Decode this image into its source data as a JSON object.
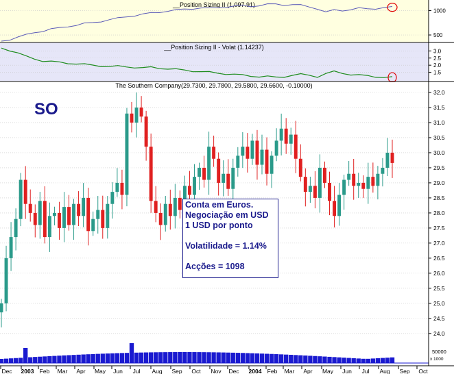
{
  "chart_data": [
    {
      "type": "line",
      "title": "__Position Sizing II (1,097.91)",
      "y_ticks": [
        500,
        1000
      ],
      "y_scale": "log",
      "ylim": [
        420,
        1250
      ],
      "series": [
        {
          "color": "#5a5ab8",
          "values": [
            420,
            440,
            470,
            500,
            540,
            560,
            590,
            610,
            640,
            660,
            690,
            710,
            740,
            770,
            800,
            840,
            870,
            900,
            930,
            960,
            990,
            1010,
            1040,
            1060,
            1080,
            1060,
            1090,
            1110,
            1130,
            1150,
            1130,
            1160,
            1190,
            1200,
            1175,
            1190,
            1160,
            1110,
            1060,
            960,
            1010,
            1000,
            1040,
            1070,
            1040,
            1060,
            1100,
            1098
          ]
        }
      ],
      "highlight": "last-value",
      "background": "#ffffe0"
    },
    {
      "type": "line",
      "title": "__Position Sizing II - Volat (1.14237)",
      "y_ticks": [
        1.5,
        2.0,
        2.5,
        3.0
      ],
      "ylim": [
        1.0,
        3.4
      ],
      "series": [
        {
          "color": "#1e8c1e",
          "values": [
            3.2,
            3.05,
            2.85,
            2.6,
            2.45,
            2.3,
            2.25,
            2.2,
            2.15,
            2.1,
            2.05,
            2.0,
            1.95,
            1.9,
            1.92,
            1.9,
            1.85,
            1.8,
            1.85,
            1.8,
            1.75,
            1.7,
            1.65,
            1.6,
            1.55,
            1.5,
            1.45,
            1.4,
            1.35,
            1.3,
            1.25,
            1.2,
            1.2,
            1.15,
            1.2,
            1.3,
            1.35,
            1.3,
            1.2,
            1.4,
            1.55,
            1.45,
            1.35,
            1.3,
            1.25,
            1.2,
            1.15,
            1.14
          ]
        }
      ],
      "highlight": "last-value",
      "background": "#e6e6f8"
    },
    {
      "type": "candlestick",
      "title": "The Southern Company(29.7300, 29.7800, 29.5800, 29.6600, -0.10000)",
      "annotation": "SO",
      "y_ticks": [
        24.0,
        24.5,
        25.0,
        25.5,
        26.0,
        26.5,
        27.0,
        27.5,
        28.0,
        28.5,
        29.0,
        29.5,
        30.0,
        30.5,
        31.0,
        31.5,
        32.0
      ],
      "ylim": [
        23.7,
        32.25
      ],
      "x_ticks": [
        "Dec",
        "2003",
        "Feb",
        "Mar",
        "Apr",
        "May",
        "Jun",
        "Jul",
        "Aug",
        "Sep",
        "Oct",
        "Nov",
        "Dec",
        "2004",
        "Feb",
        "Mar",
        "Apr",
        "May",
        "Jun",
        "Jul",
        "Aug",
        "Sep",
        "Oct"
      ],
      "x_ticks_bold": [
        "2003",
        "2004"
      ],
      "up_color": "#2a9a8a",
      "down_color": "#e02020",
      "closes": [
        25.0,
        26.5,
        27.2,
        27.8,
        29.1,
        28.3,
        28.0,
        27.6,
        28.4,
        27.2,
        27.9,
        28.0,
        27.5,
        28.2,
        27.6,
        28.3,
        27.9,
        28.5,
        27.4,
        27.8,
        28.1,
        27.5,
        28.3,
        28.7,
        29.0,
        28.6,
        31.3,
        31.0,
        31.5,
        31.2,
        30.2,
        28.4,
        28.0,
        27.6,
        28.3,
        27.9,
        28.5,
        28.1,
        28.9,
        28.6,
        29.2,
        29.5,
        29.1,
        30.2,
        29.8,
        29.0,
        29.3,
        28.8,
        29.5,
        29.9,
        30.2,
        29.8,
        30.4,
        29.6,
        30.1,
        29.3,
        29.9,
        30.4,
        30.8,
        30.3,
        30.6,
        29.8,
        29.2,
        28.7,
        28.9,
        28.5,
        29.5,
        29.0,
        28.4,
        27.9,
        28.6,
        29.1,
        29.3,
        28.9,
        29.0,
        28.8,
        29.2,
        28.9,
        29.3,
        29.5,
        30.0,
        29.66
      ],
      "volume_ticks": [
        "50000"
      ],
      "volume_color": "#1a1ad0"
    }
  ],
  "info_box": {
    "line1": "Conta em Euros.",
    "line2": "Negociação em USD",
    "line3": "1 USD por ponto",
    "line4": "Volatilidade = 1.14%",
    "line5": "Acções = 1098"
  },
  "volume_unit": "x 1000"
}
